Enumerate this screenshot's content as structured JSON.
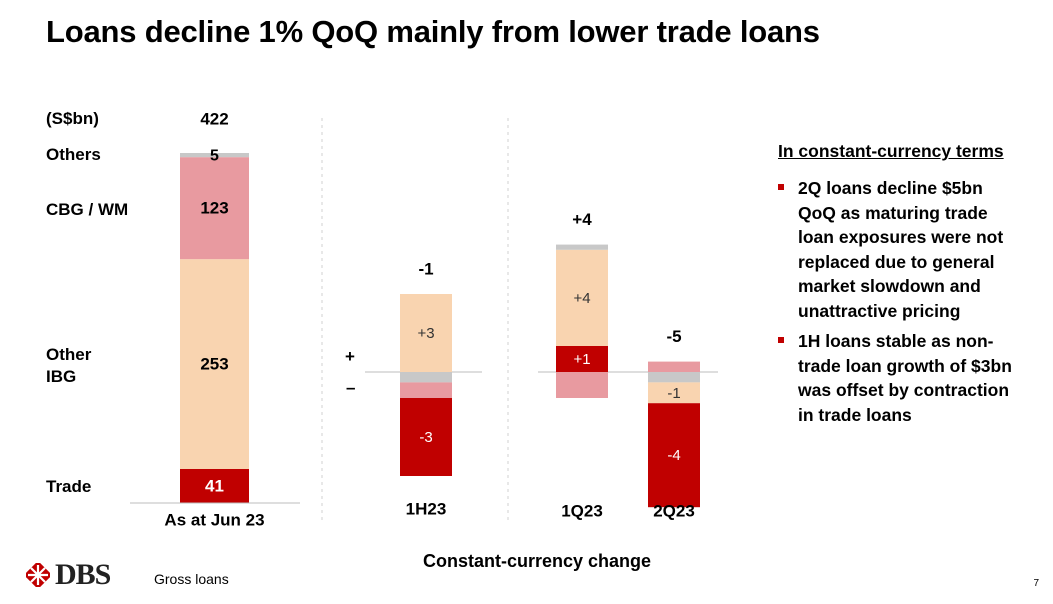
{
  "title": "Loans decline 1% QoQ mainly from lower trade loans",
  "colors": {
    "trade": "#c00000",
    "other_ibg": "#f9d4b0",
    "cbg_wm": "#e89aa0",
    "others": "#c8c8c8",
    "accent": "#c00000"
  },
  "chart_data": {
    "type": "bar",
    "unit_label": "(S$bn)",
    "title": "",
    "categories": [
      "As at Jun 23",
      "1H23",
      "1Q23",
      "2Q23"
    ],
    "segment_names": [
      "Trade",
      "Other IBG",
      "CBG / WM",
      "Others"
    ],
    "stack": {
      "category": "As at Jun 23",
      "total": "422",
      "row_labels": [
        "Others",
        "CBG / WM",
        "Other\nIBG",
        "Trade"
      ],
      "segments": [
        {
          "name": "Trade",
          "value": 41,
          "label": "41"
        },
        {
          "name": "Other IBG",
          "value": 253,
          "label": "253"
        },
        {
          "name": "CBG / WM",
          "value": 123,
          "label": "123"
        },
        {
          "name": "Others",
          "value": 5,
          "label": "5"
        }
      ]
    },
    "changes": [
      {
        "category": "1H23",
        "net_label": "-1",
        "segments": [
          {
            "name": "Other IBG",
            "value": 3,
            "label": "+3"
          },
          {
            "name": "Others",
            "value": -0.4,
            "label": ""
          },
          {
            "name": "CBG / WM",
            "value": -0.6,
            "label": ""
          },
          {
            "name": "Trade",
            "value": -3,
            "label": "-3"
          }
        ]
      },
      {
        "category": "1Q23",
        "net_label": "+4",
        "segments": [
          {
            "name": "Trade",
            "value": 1,
            "label": "+1"
          },
          {
            "name": "Other IBG",
            "value": 3.7,
            "label": "+4"
          },
          {
            "name": "Others",
            "value": 0.2,
            "label": ""
          },
          {
            "name": "CBG / WM",
            "value": -1,
            "label": ""
          }
        ]
      },
      {
        "category": "2Q23",
        "net_label": "-5",
        "segments": [
          {
            "name": "CBG / WM",
            "value": 0.4,
            "label": ""
          },
          {
            "name": "Others",
            "value": -0.4,
            "label": ""
          },
          {
            "name": "Other IBG",
            "value": -0.8,
            "label": "-1"
          },
          {
            "name": "Trade",
            "value": -4,
            "label": "-4"
          }
        ]
      }
    ],
    "signs": {
      "plus": "+",
      "minus": "–"
    },
    "xlabel": "Constant-currency change"
  },
  "commentary": {
    "heading": "In constant-currency terms",
    "bullets": [
      "2Q loans decline $5bn QoQ as maturing trade loan exposures were not replaced due to general market slowdown and unattractive pricing",
      "1H loans stable as non-trade loan growth of $3bn was offset by contraction in trade loans"
    ]
  },
  "footer": {
    "logo_text": "DBS",
    "note": "Gross loans",
    "page_number": "7"
  }
}
